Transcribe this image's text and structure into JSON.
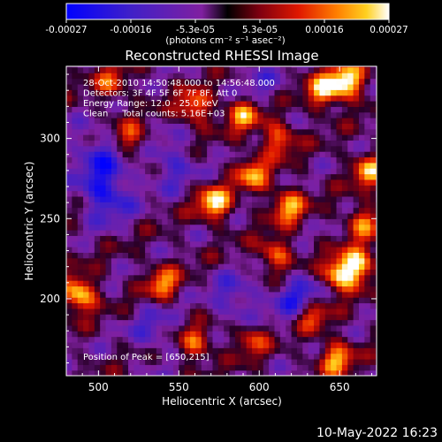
{
  "colorbar": {
    "tick_labels": [
      "-0.00027",
      "-0.00016",
      "-5.3e-05",
      "5.3e-05",
      "0.00016",
      "0.00027"
    ],
    "units": "(photons cm⁻² s⁻¹ asec⁻²)",
    "range": [
      -0.00027,
      0.00027
    ]
  },
  "chart_data": {
    "type": "heatmap",
    "title": "Reconstructed RHESSI Image",
    "xlabel": "Heliocentric X (arcsec)",
    "ylabel": "Heliocentric Y (arcsec)",
    "xlim": [
      480,
      673
    ],
    "ylim": [
      152,
      345
    ],
    "x_ticks": [
      500,
      550,
      600,
      650
    ],
    "y_ticks": [
      200,
      250,
      300
    ],
    "annotations": [
      "28-Oct-2010 14:50:48.000 to 14:56:48.000",
      "Detectors: 3F 4F 5F 6F 7F 8F, Att 0",
      "Energy Range: 12.0 - 25.0 keV",
      "Clean     Total counts: 5.16E+03"
    ],
    "peak_text": "Position of Peak = [650,215]",
    "peak": [
      650,
      215
    ],
    "hot_spots": [
      {
        "x": 655,
        "y": 336,
        "v": 1.0
      },
      {
        "x": 640,
        "y": 330,
        "v": 0.8
      },
      {
        "x": 488,
        "y": 203,
        "v": 0.95
      },
      {
        "x": 650,
        "y": 215,
        "v": 0.95
      },
      {
        "x": 662,
        "y": 222,
        "v": 0.85
      },
      {
        "x": 572,
        "y": 260,
        "v": 0.9
      },
      {
        "x": 596,
        "y": 278,
        "v": 0.7
      },
      {
        "x": 618,
        "y": 258,
        "v": 0.75
      },
      {
        "x": 560,
        "y": 320,
        "v": 0.7
      },
      {
        "x": 590,
        "y": 315,
        "v": 0.7
      },
      {
        "x": 612,
        "y": 300,
        "v": 0.65
      },
      {
        "x": 633,
        "y": 190,
        "v": 0.7
      },
      {
        "x": 648,
        "y": 163,
        "v": 0.75
      },
      {
        "x": 610,
        "y": 228,
        "v": 0.65
      },
      {
        "x": 540,
        "y": 210,
        "v": 0.65
      },
      {
        "x": 560,
        "y": 172,
        "v": 0.6
      },
      {
        "x": 520,
        "y": 300,
        "v": 0.55
      },
      {
        "x": 595,
        "y": 175,
        "v": 0.5
      },
      {
        "x": 668,
        "y": 280,
        "v": 0.7
      },
      {
        "x": 508,
        "y": 335,
        "v": 0.5
      },
      {
        "x": 665,
        "y": 248,
        "v": 0.6
      }
    ],
    "cold_spots": [
      {
        "x": 505,
        "y": 265,
        "v": -0.8
      },
      {
        "x": 500,
        "y": 290,
        "v": -0.6
      },
      {
        "x": 545,
        "y": 285,
        "v": -0.5
      },
      {
        "x": 625,
        "y": 200,
        "v": -0.7
      },
      {
        "x": 585,
        "y": 200,
        "v": -0.5
      },
      {
        "x": 535,
        "y": 180,
        "v": -0.4
      },
      {
        "x": 600,
        "y": 335,
        "v": -0.3
      }
    ],
    "grid": false
  },
  "footer": {
    "timestamp": "10-May-2022 16:23"
  }
}
